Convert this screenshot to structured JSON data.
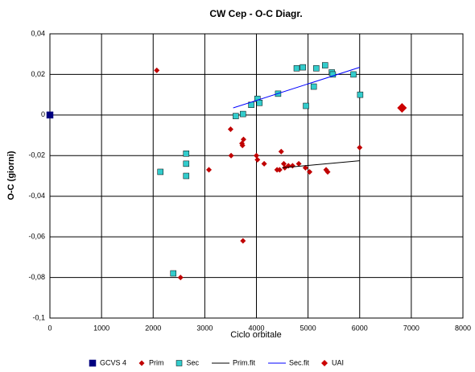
{
  "chart_data": {
    "type": "scatter",
    "title": "CW Cep - O-C Diagr.",
    "xlabel": "Ciclo orbitale",
    "ylabel": "O-C  (giorni)",
    "xlim": [
      0,
      8000
    ],
    "xticks": [
      0,
      1000,
      2000,
      3000,
      4000,
      5000,
      6000,
      7000,
      8000
    ],
    "ylim": [
      -0.1,
      0.04
    ],
    "yticks": [
      {
        "value": -0.1,
        "label": "-0,1"
      },
      {
        "value": -0.08,
        "label": "-0,08"
      },
      {
        "value": -0.06,
        "label": "-0,06"
      },
      {
        "value": -0.04,
        "label": "-0,04"
      },
      {
        "value": -0.02,
        "label": "-0,02"
      },
      0,
      {
        "value": 0.02,
        "label": "0,02"
      },
      {
        "value": 0.04,
        "label": "0,04"
      }
    ],
    "grid": true,
    "legend": "bottom",
    "series": [
      {
        "name": "GCVS 4",
        "color": "#000080",
        "marker": "square",
        "size": 4,
        "x": [
          0
        ],
        "values": [
          0
        ]
      },
      {
        "name": "Prim",
        "color": "#c00000",
        "marker": "diamond",
        "size": 3.5,
        "x": [
          2070,
          3080,
          3500,
          3510,
          3720,
          3750,
          3730,
          3740,
          4000,
          4020,
          4150,
          4400,
          4450,
          4480,
          4530,
          4550,
          4620,
          4700,
          4820,
          4950,
          5030,
          5350,
          5380,
          6000,
          2530
        ],
        "values": [
          0.022,
          -0.027,
          -0.007,
          -0.02,
          -0.014,
          -0.012,
          -0.015,
          -0.062,
          -0.02,
          -0.022,
          -0.024,
          -0.027,
          -0.027,
          -0.018,
          -0.024,
          -0.026,
          -0.025,
          -0.025,
          -0.024,
          -0.026,
          -0.028,
          -0.027,
          -0.028,
          -0.016,
          -0.08
        ]
      },
      {
        "name": "Sec",
        "color": "#33cccc",
        "marker": "square",
        "size": 3.5,
        "x": [
          2140,
          2640,
          2640,
          2640,
          2390,
          3600,
          3740,
          3900,
          4020,
          4060,
          4420,
          4780,
          4900,
          4960,
          5110,
          5160,
          5330,
          5460,
          5480,
          5880,
          6010
        ],
        "values": [
          -0.028,
          -0.019,
          -0.024,
          -0.03,
          -0.078,
          -0.0005,
          0.0005,
          0.005,
          0.008,
          0.006,
          0.0105,
          0.023,
          0.0235,
          0.0045,
          0.014,
          0.023,
          0.0245,
          0.021,
          0.02,
          0.02,
          0.01
        ]
      },
      {
        "name": "Prim.fit",
        "color": "#000000",
        "marker": "line",
        "x": [
          4500,
          6000
        ],
        "values": [
          -0.026,
          -0.0225
        ]
      },
      {
        "name": "Sec.fit",
        "color": "#0000ff",
        "marker": "line",
        "x": [
          3550,
          6000
        ],
        "values": [
          0.0035,
          0.0235
        ]
      },
      {
        "name": "UAI",
        "color": "#cc0000",
        "marker": "diamond",
        "size": 6,
        "x": [
          6820
        ],
        "values": [
          0.0035
        ]
      }
    ]
  }
}
